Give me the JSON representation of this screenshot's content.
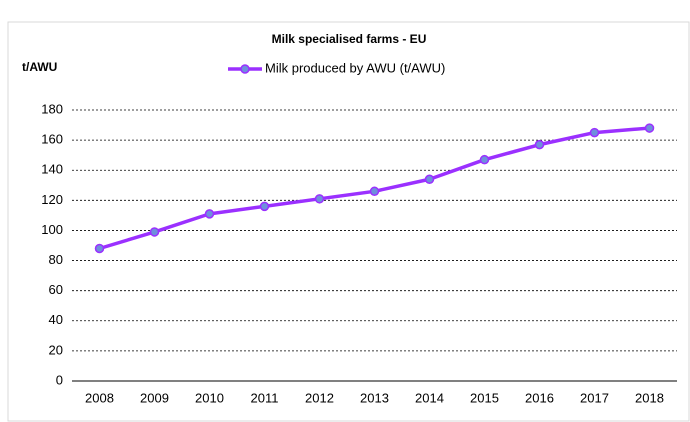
{
  "chart_data": {
    "type": "line",
    "title": "Milk specialised  farms - EU",
    "y_label": "t/AWU",
    "categories": [
      "2008",
      "2009",
      "2010",
      "2011",
      "2012",
      "2013",
      "2014",
      "2015",
      "2016",
      "2017",
      "2018"
    ],
    "series": [
      {
        "name": "Milk produced by AWU (t/AWU)",
        "color": "#9b30ff",
        "marker_color": "#6f8fdc",
        "values": [
          88,
          99,
          111,
          116,
          121,
          126,
          134,
          147,
          157,
          165,
          168
        ]
      }
    ],
    "ylim": [
      0,
      180
    ],
    "yticks": [
      0,
      20,
      40,
      60,
      80,
      100,
      120,
      140,
      160,
      180
    ],
    "grid": true
  }
}
